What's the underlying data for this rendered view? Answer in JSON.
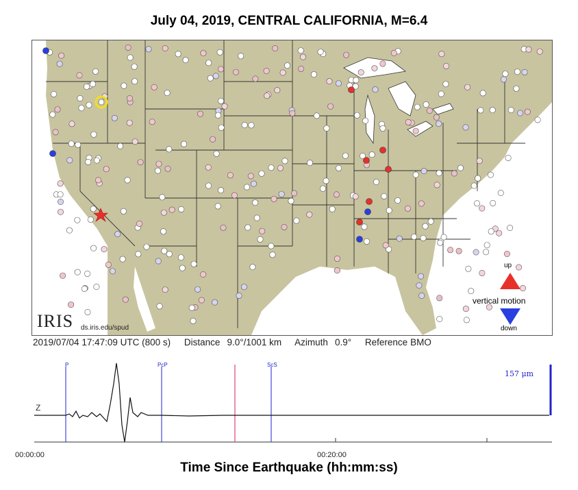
{
  "title": "July 04, 2019, CENTRAL CALIFORNIA, M=6.4",
  "logo": {
    "text": "IRIS",
    "url": "ds.iris.edu/spud"
  },
  "legend": {
    "up": "up",
    "label": "vertical motion",
    "down": "down",
    "up_color": "#e8302a",
    "down_color": "#2a3fe0"
  },
  "info": {
    "time": "2019/07/04 17:47:09 UTC (800 s)",
    "distance_label": "Distance",
    "distance": "9.0°/1001 km",
    "azimuth_label": "Azimuth",
    "azimuth": "0.9°",
    "reference_label": "Reference",
    "reference": "BMO"
  },
  "trace": {
    "channel": "Z",
    "amplitude": "157 μm",
    "phases": [
      "P",
      "PcP",
      "ScS"
    ],
    "time_start": "00:00:00",
    "time_mid": "00:20:00",
    "xlabel": "Time Since Earthquake (hh:mm:ss)"
  },
  "colors": {
    "land": "#c8c4a0",
    "water": "#ffffff",
    "epicenter": "#e8302a",
    "reference_station": "#f0e020",
    "phase_line": "#2222cc",
    "current_time": "#e0407a"
  }
}
